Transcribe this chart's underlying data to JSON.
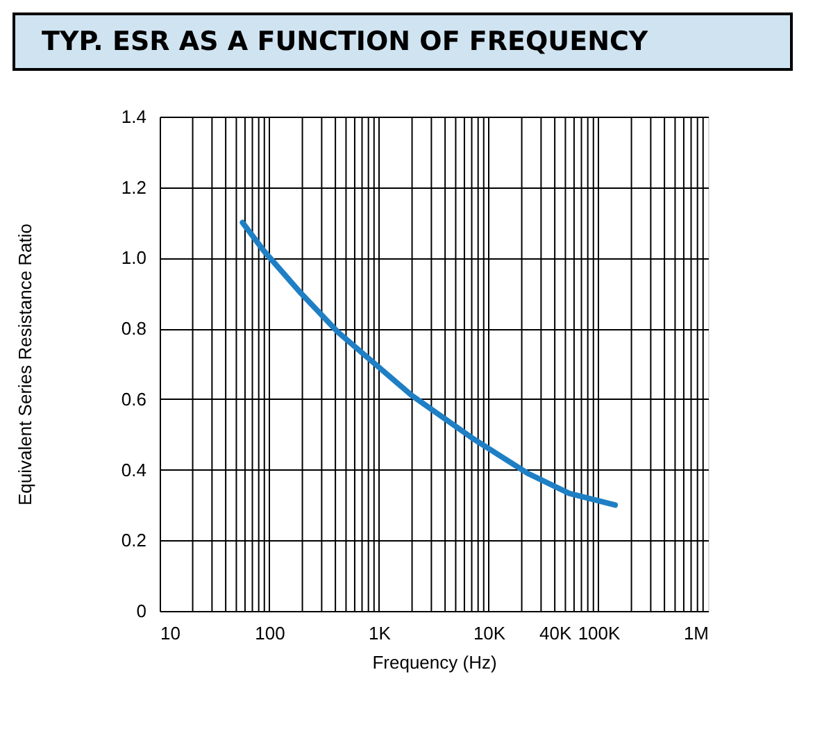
{
  "chart_data": {
    "type": "line",
    "title": "TYP. ESR AS A FUNCTION OF FREQUENCY",
    "xlabel": "Frequency (Hz)",
    "ylabel": "Equivalent Series Resistance Ratio",
    "series": [
      {
        "color": "#1f7fc4",
        "x": [
          57,
          89,
          194,
          421,
          916,
          1995,
          7050,
          22600,
          54200,
          142000
        ],
        "values": [
          1.1,
          1.02,
          0.9,
          0.79,
          0.7,
          0.61,
          0.49,
          0.39,
          0.333,
          0.3
        ]
      }
    ],
    "log": "x",
    "xlim": [
      10,
      1000000
    ],
    "ylim": [
      0,
      1.4
    ],
    "xticks": [
      10,
      {
        "value": 100,
        "label": "100"
      },
      {
        "value": 1000,
        "label": "1K"
      },
      {
        "value": 10000,
        "label": "10K"
      },
      {
        "value": 40000,
        "label": "40K"
      },
      {
        "value": 100000,
        "label": "100K"
      },
      {
        "value": 1000000,
        "label": "1M"
      }
    ],
    "yticks": [
      {
        "value": 0,
        "label": "0"
      },
      {
        "value": 0.2,
        "label": "0.2"
      },
      {
        "value": 0.4,
        "label": "0.4"
      },
      {
        "value": 0.6,
        "label": "0.6"
      },
      {
        "value": 0.8,
        "label": "0.8"
      },
      {
        "value": 1.0,
        "label": "1.0"
      },
      {
        "value": 1.2,
        "label": "1.2"
      },
      {
        "value": 1.4,
        "label": "1.4"
      }
    ],
    "grid": true,
    "marker": "none",
    "line_style": "solid"
  }
}
